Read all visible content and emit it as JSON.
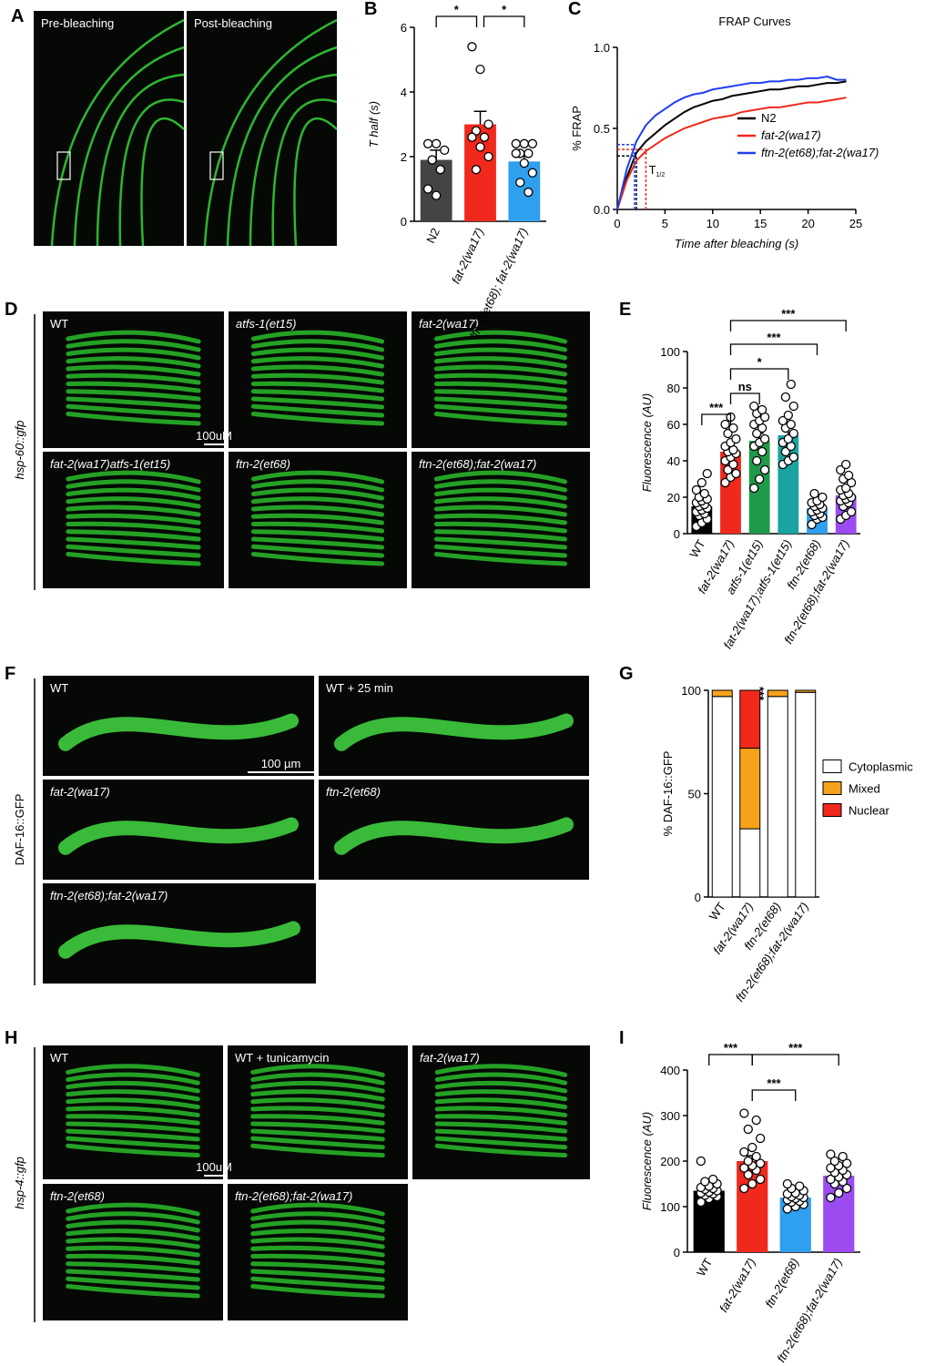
{
  "panel_labels": [
    "A",
    "B",
    "C",
    "D",
    "E",
    "F",
    "G",
    "H",
    "I"
  ],
  "figure": {
    "A": {
      "tiles": [
        "Pre-bleaching",
        "Post-bleaching"
      ]
    },
    "D": {
      "row_label": "hsp-60::gfp",
      "tiles": [
        "WT",
        "atfs-1(et15)",
        "fat-2(wa17)",
        "fat-2(wa17)atfs-1(et15)",
        "ftn-2(et68)",
        "ftn-2(et68);fat-2(wa17)"
      ],
      "scale_bar": "100uM"
    },
    "F": {
      "row_label": "DAF-16::GFP",
      "tiles": [
        "WT",
        "WT + 25 min",
        "fat-2(wa17)",
        "ftn-2(et68)",
        "ftn-2(et68);fat-2(wa17)"
      ],
      "scale_bar": "100 µm"
    },
    "H": {
      "row_label": "hsp-4::gfp",
      "tiles": [
        "WT",
        "WT + tunicamycin",
        "fat-2(wa17)",
        "ftn-2(et68)",
        "ftn-2(et68);fat-2(wa17)"
      ],
      "scale_bar": "100uM"
    }
  },
  "chart_data": [
    {
      "type": "bar",
      "y_label": "T half (s)",
      "categories": [
        "N2",
        "fat-2(wa17)",
        "ftn-2(et68); fat-2(wa17)"
      ],
      "values": [
        1.9,
        3.0,
        1.85
      ],
      "errors": [
        0.3,
        0.4,
        0.2
      ],
      "colors": [
        "#444444",
        "#f0291c",
        "#2f9ff0"
      ],
      "points": [
        [
          2.4,
          2.4,
          2.2,
          1.9,
          1.6,
          1.0,
          0.8
        ],
        [
          5.4,
          4.7,
          3.0,
          2.8,
          2.6,
          2.6,
          2.3,
          2.0,
          1.6
        ],
        [
          2.4,
          2.4,
          2.4,
          2.1,
          2.1,
          2.1,
          1.8,
          1.5,
          1.2,
          0.9
        ]
      ],
      "ylim": [
        0,
        6
      ],
      "yticks": [
        0,
        2,
        4,
        6
      ],
      "significance": [
        {
          "between": [
            "N2",
            "fat-2(wa17)"
          ],
          "label": "*"
        },
        {
          "between": [
            "fat-2(wa17)",
            "ftn-2(et68); fat-2(wa17)"
          ],
          "label": "*"
        }
      ]
    },
    {
      "type": "line",
      "title": "FRAP Curves",
      "x_label": "Time after bleaching (s)",
      "y_label": "% FRAP",
      "x": [
        0,
        1,
        2,
        3,
        4,
        5,
        6,
        7,
        8,
        9,
        10,
        11,
        12,
        13,
        14,
        15,
        16,
        17,
        18,
        19,
        20,
        21,
        22,
        23,
        24
      ],
      "series": [
        {
          "name": "N2",
          "color": "#000000",
          "t_half": 2.0,
          "half_value": 0.33,
          "values": [
            0,
            0.2,
            0.35,
            0.42,
            0.47,
            0.52,
            0.56,
            0.6,
            0.63,
            0.65,
            0.67,
            0.68,
            0.7,
            0.71,
            0.72,
            0.73,
            0.74,
            0.74,
            0.75,
            0.76,
            0.76,
            0.77,
            0.78,
            0.78,
            0.79
          ]
        },
        {
          "name": "fat-2(wa17)",
          "color": "#f0291c",
          "t_half": 3.0,
          "half_value": 0.37,
          "values": [
            0,
            0.18,
            0.3,
            0.36,
            0.4,
            0.44,
            0.47,
            0.5,
            0.52,
            0.54,
            0.56,
            0.57,
            0.58,
            0.6,
            0.61,
            0.62,
            0.63,
            0.63,
            0.64,
            0.65,
            0.66,
            0.66,
            0.67,
            0.68,
            0.69
          ]
        },
        {
          "name": "ftn-2(et68);fat-2(wa17)",
          "color": "#1f3ff0",
          "t_half": 1.8,
          "half_value": 0.4,
          "values": [
            0,
            0.25,
            0.42,
            0.52,
            0.58,
            0.62,
            0.66,
            0.69,
            0.71,
            0.72,
            0.74,
            0.75,
            0.76,
            0.77,
            0.78,
            0.78,
            0.79,
            0.79,
            0.8,
            0.8,
            0.81,
            0.81,
            0.82,
            0.8,
            0.8
          ]
        }
      ],
      "annotation": {
        "text": "T",
        "subscript": "1/2"
      },
      "xlim": [
        0,
        25
      ],
      "xticks": [
        0,
        5,
        10,
        15,
        20,
        25
      ],
      "ylim": [
        0,
        1
      ],
      "yticks": [
        {
          "value": 0,
          "label": "0.0"
        },
        0.5,
        {
          "value": 1,
          "label": "1.0"
        }
      ],
      "legend": "center-right"
    },
    {
      "type": "bar",
      "y_label": "Fluorescence (AU)",
      "categories": [
        "WT",
        "fat-2(wa17)",
        "atfs-1(et15)",
        "fat-2(wa17);atfs-1(et15)",
        "ftn-2(et68)",
        "ftn-2(et68);fat-2(wa17)"
      ],
      "values": [
        15,
        45,
        51,
        54,
        14,
        21
      ],
      "errors": [
        2,
        3,
        4,
        4,
        1.5,
        2
      ],
      "colors": [
        "#000000",
        "#f0291c",
        "#1f9a4a",
        "#1aa3a0",
        "#2f9ff0",
        "#9b4bf0"
      ],
      "points": [
        [
          4,
          6,
          8,
          10,
          11,
          12,
          13,
          14,
          15,
          16,
          17,
          18,
          19,
          20,
          22,
          24,
          28,
          33
        ],
        [
          28,
          31,
          33,
          35,
          38,
          40,
          42,
          44,
          45,
          46,
          48,
          50,
          52,
          55,
          58,
          60,
          64
        ],
        [
          25,
          30,
          35,
          40,
          45,
          48,
          50,
          52,
          55,
          58,
          60,
          62,
          64,
          66,
          68,
          70
        ],
        [
          38,
          40,
          42,
          45,
          48,
          50,
          52,
          55,
          58,
          60,
          62,
          65,
          70,
          75,
          82
        ],
        [
          5,
          8,
          9,
          10,
          11,
          12,
          13,
          14,
          15,
          16,
          17,
          18,
          20,
          22
        ],
        [
          8,
          10,
          12,
          15,
          17,
          18,
          19,
          20,
          21,
          22,
          24,
          25,
          28,
          30,
          32,
          35,
          38
        ]
      ],
      "ylim": [
        0,
        100
      ],
      "yticks": [
        0,
        20,
        40,
        60,
        80,
        100
      ],
      "significance": [
        {
          "between": [
            "WT",
            "fat-2(wa17)"
          ],
          "label": "***"
        },
        {
          "between": [
            "fat-2(wa17)",
            "atfs-1(et15)"
          ],
          "label": "ns"
        },
        {
          "between": [
            "fat-2(wa17)",
            "fat-2(wa17);atfs-1(et15)"
          ],
          "label": "*"
        },
        {
          "between": [
            "fat-2(wa17)",
            "ftn-2(et68)"
          ],
          "label": "***"
        },
        {
          "between": [
            "fat-2(wa17)",
            "ftn-2(et68);fat-2(wa17)"
          ],
          "label": "***"
        }
      ]
    },
    {
      "type": "stacked-bar",
      "y_label": "% DAF-16::GFP",
      "categories": [
        "WT",
        "fat-2(wa17)",
        "ftn-2(et68)",
        "ftn-2(et68);fat-2(wa17)"
      ],
      "series": [
        {
          "name": "Cytoplasmic",
          "color": "#ffffff",
          "values": [
            97,
            33,
            97,
            99
          ]
        },
        {
          "name": "Mixed",
          "color": "#f7a21b",
          "values": [
            3,
            39,
            3,
            1
          ]
        },
        {
          "name": "Nuclear",
          "color": "#f0291c",
          "values": [
            0,
            28,
            0,
            0
          ]
        }
      ],
      "annotations": [
        {
          "category": "fat-2(wa17)",
          "text": "***"
        }
      ],
      "ylim": [
        0,
        100
      ],
      "yticks": [
        0,
        50,
        100
      ],
      "legend": "center-right"
    },
    {
      "type": "bar",
      "y_label": "Fluorescence (AU)",
      "categories": [
        "WT",
        "fat-2(wa17)",
        "ftn-2(et68)",
        "ftn-2(et68);fat-2(wa17)"
      ],
      "values": [
        135,
        200,
        120,
        168
      ],
      "errors": [
        5,
        12,
        4,
        5
      ],
      "colors": [
        "#000000",
        "#f0291c",
        "#2f9ff0",
        "#9b4bf0"
      ],
      "points": [
        [
          110,
          118,
          122,
          125,
          128,
          130,
          132,
          135,
          138,
          140,
          142,
          145,
          150,
          155,
          160,
          200
        ],
        [
          140,
          150,
          160,
          170,
          180,
          185,
          190,
          195,
          200,
          210,
          220,
          230,
          250,
          270,
          290,
          305
        ],
        [
          95,
          100,
          105,
          110,
          112,
          115,
          118,
          120,
          122,
          125,
          128,
          130,
          135,
          140,
          145,
          150
        ],
        [
          120,
          130,
          140,
          150,
          155,
          160,
          165,
          170,
          175,
          180,
          185,
          190,
          195,
          200,
          210,
          215
        ]
      ],
      "ylim": [
        0,
        400
      ],
      "yticks": [
        0,
        100,
        200,
        300,
        400
      ],
      "significance": [
        {
          "between": [
            "WT",
            "fat-2(wa17)"
          ],
          "label": "***"
        },
        {
          "between": [
            "fat-2(wa17)",
            "ftn-2(et68)"
          ],
          "label": "***"
        },
        {
          "between": [
            "fat-2(wa17)",
            "ftn-2(et68);fat-2(wa17)"
          ],
          "label": "***"
        }
      ]
    }
  ]
}
